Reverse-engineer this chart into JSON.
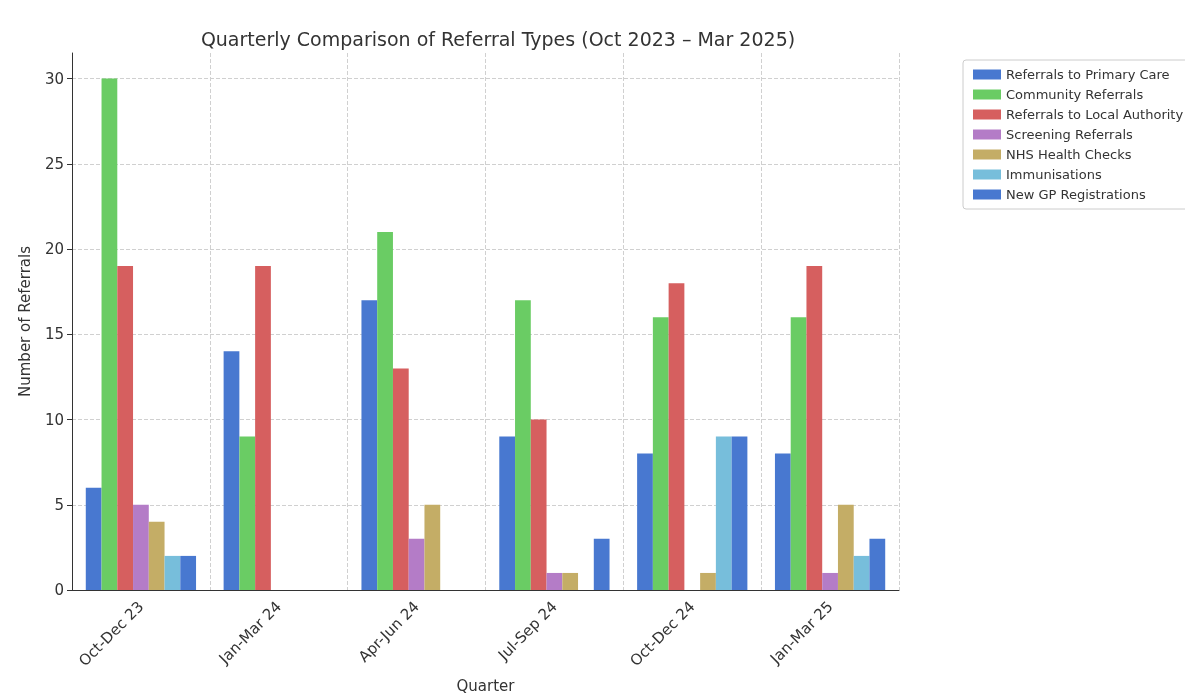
{
  "chart_data": {
    "type": "bar",
    "title": "Quarterly Comparison of Referral Types (Oct 2023 – Mar 2025)",
    "xlabel": "Quarter",
    "ylabel": "Number of Referrals",
    "categories": [
      "Oct-Dec 23",
      "Jan-Mar 24",
      "Apr-Jun 24",
      "Jul-Sep 24",
      "Oct-Dec 24",
      "Jan-Mar 25"
    ],
    "series": [
      {
        "name": "Referrals to Primary Care",
        "color": "#4878d0",
        "values": [
          6,
          14,
          17,
          9,
          8,
          8
        ]
      },
      {
        "name": "Community Referrals",
        "color": "#6acc64",
        "values": [
          30,
          9,
          21,
          17,
          16,
          16
        ]
      },
      {
        "name": "Referrals to Local Authority",
        "color": "#d65f5f",
        "values": [
          19,
          19,
          13,
          10,
          18,
          19
        ]
      },
      {
        "name": "Screening Referrals",
        "color": "#b47cc7",
        "values": [
          5,
          0,
          3,
          1,
          0,
          1
        ]
      },
      {
        "name": "NHS Health Checks",
        "color": "#c4ad66",
        "values": [
          4,
          0,
          5,
          1,
          1,
          5
        ]
      },
      {
        "name": "Immunisations",
        "color": "#77bedb",
        "values": [
          2,
          0,
          0,
          0,
          9,
          2
        ]
      },
      {
        "name": "New GP Registrations",
        "color": "#4878d0",
        "values": [
          2,
          0,
          0,
          3,
          9,
          3
        ]
      }
    ],
    "ylim": [
      0,
      31.5
    ],
    "yticks": [
      0,
      5,
      10,
      15,
      20,
      25,
      30
    ],
    "grid": true,
    "legend": "top right"
  }
}
